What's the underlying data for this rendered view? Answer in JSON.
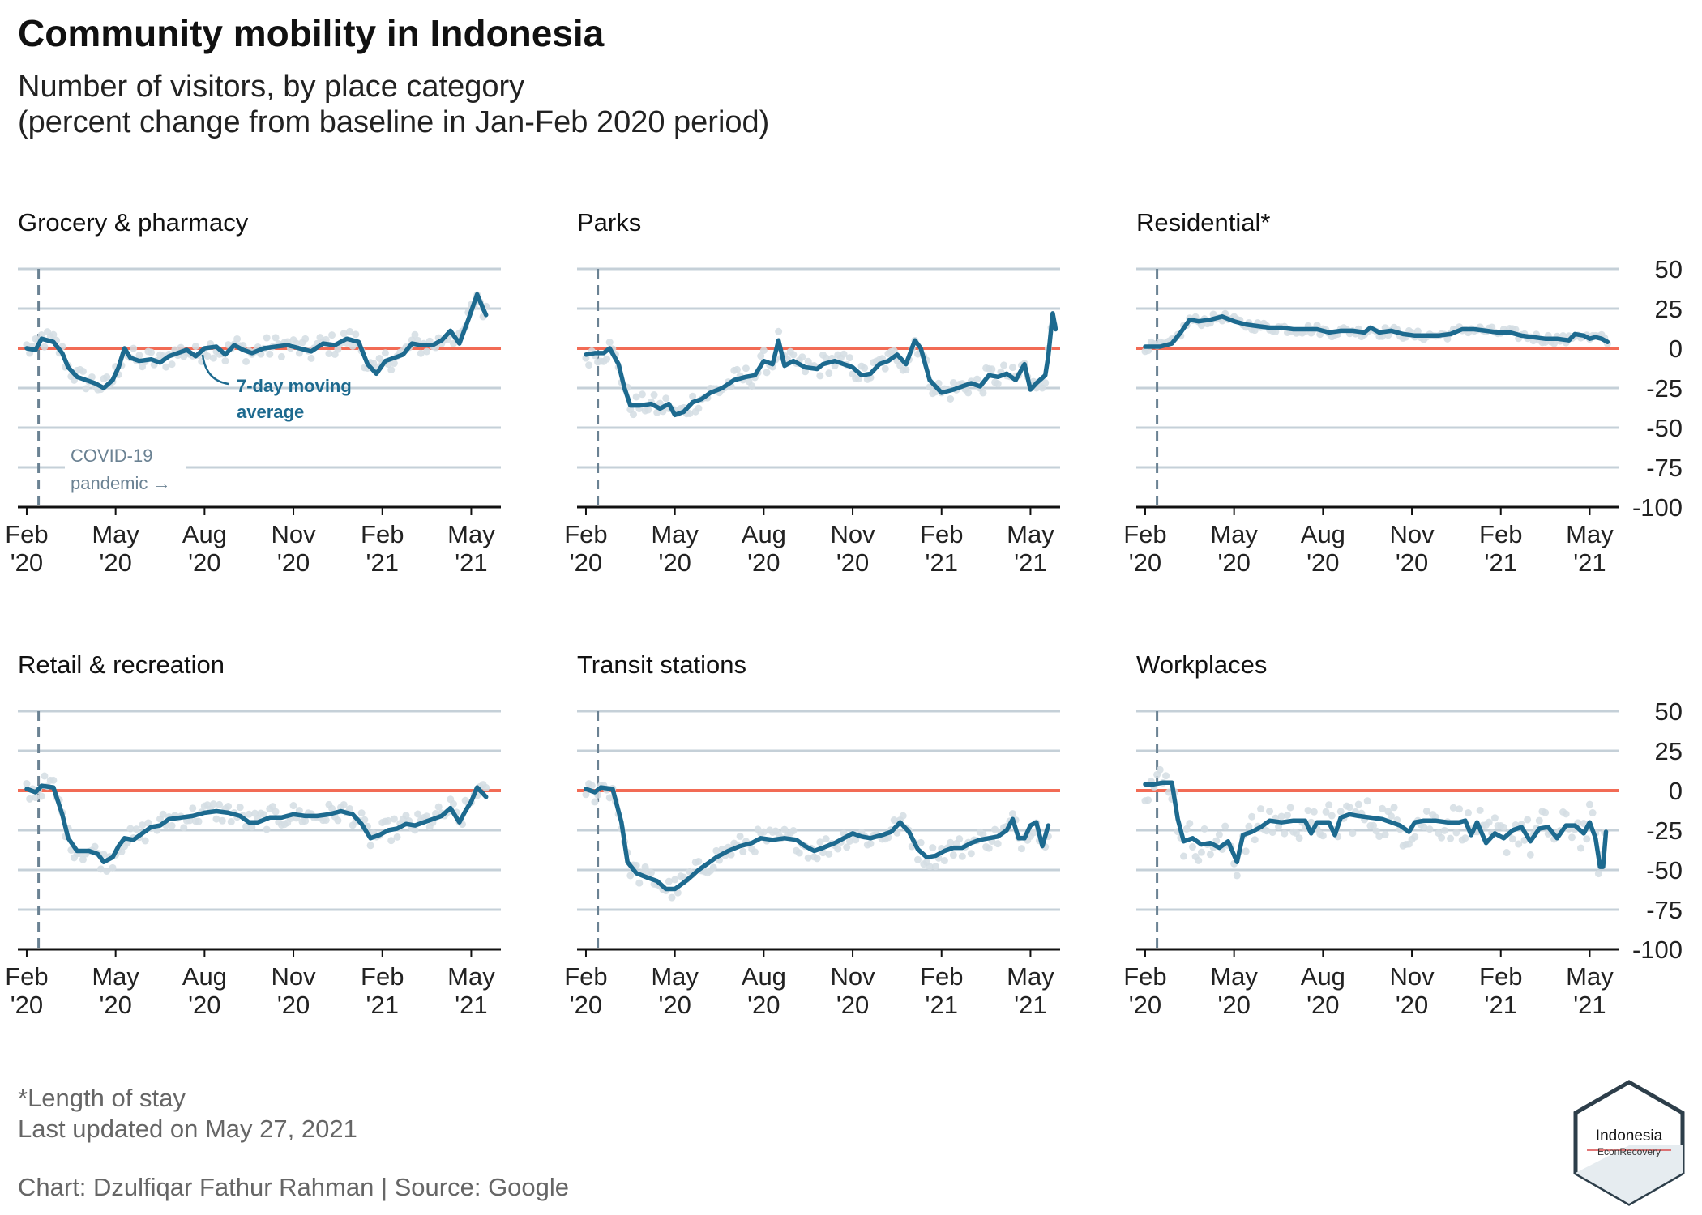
{
  "title": "Community mobility in Indonesia",
  "subtitle_line1": "Number of visitors, by place category",
  "subtitle_line2": "(percent change from baseline in Jan-Feb 2020 period)",
  "footnote_line1": "*Length of stay",
  "footnote_line2": "Last updated on May 27, 2021",
  "credit": "Chart: Dzulfiqar Fathur Rahman | Source: Google",
  "logo": {
    "line1": "Indonesia",
    "line2": "EconRecovery"
  },
  "annotations": {
    "covid_line1": "COVID-19",
    "covid_line2": "pandemic →",
    "ma_line1": "7-day moving",
    "ma_line2": "average"
  },
  "colors": {
    "line": "#1d6a8f",
    "baseline": "#f26b55",
    "grid": "#c5d0d8",
    "points": "#d4dde3",
    "covid": "#6b8293",
    "annotation": "#1d6a8f"
  },
  "chart_data": {
    "type": "line",
    "x_tick_labels": [
      [
        "Feb",
        "'20"
      ],
      [
        "May",
        "'20"
      ],
      [
        "Aug",
        "'20"
      ],
      [
        "Nov",
        "'20"
      ],
      [
        "Feb",
        "'21"
      ],
      [
        "May",
        "'21"
      ]
    ],
    "x_tick_months": [
      0,
      3,
      6,
      9,
      12,
      15
    ],
    "ylim": [
      -100,
      50
    ],
    "y_ticks": [
      50,
      25,
      0,
      -25,
      -50,
      -75,
      -100
    ],
    "covid_marker_month": 0.4,
    "panels": [
      {
        "name": "Grocery & pharmacy",
        "points": [
          [
            0,
            0
          ],
          [
            0.3,
            -1
          ],
          [
            0.5,
            6
          ],
          [
            0.9,
            4
          ],
          [
            1.2,
            -3
          ],
          [
            1.4,
            -12
          ],
          [
            1.7,
            -18
          ],
          [
            2.0,
            -20
          ],
          [
            2.3,
            -22
          ],
          [
            2.6,
            -25
          ],
          [
            2.9,
            -20
          ],
          [
            3.1,
            -12
          ],
          [
            3.3,
            0
          ],
          [
            3.5,
            -6
          ],
          [
            3.8,
            -8
          ],
          [
            4.2,
            -7
          ],
          [
            4.5,
            -9
          ],
          [
            4.8,
            -5
          ],
          [
            5.1,
            -3
          ],
          [
            5.4,
            -1
          ],
          [
            5.7,
            -5
          ],
          [
            6.0,
            0
          ],
          [
            6.4,
            1
          ],
          [
            6.7,
            -4
          ],
          [
            7.0,
            2
          ],
          [
            7.3,
            -1
          ],
          [
            7.6,
            -3
          ],
          [
            8.0,
            0
          ],
          [
            8.4,
            1
          ],
          [
            8.8,
            2
          ],
          [
            9.2,
            0
          ],
          [
            9.6,
            -2
          ],
          [
            10.0,
            3
          ],
          [
            10.4,
            2
          ],
          [
            10.8,
            6
          ],
          [
            11.2,
            4
          ],
          [
            11.5,
            -10
          ],
          [
            11.8,
            -16
          ],
          [
            12.1,
            -8
          ],
          [
            12.4,
            -6
          ],
          [
            12.7,
            -4
          ],
          [
            13.0,
            3
          ],
          [
            13.3,
            2
          ],
          [
            13.7,
            2
          ],
          [
            14.0,
            5
          ],
          [
            14.3,
            11
          ],
          [
            14.6,
            3
          ],
          [
            14.9,
            18
          ],
          [
            15.2,
            34
          ],
          [
            15.4,
            25
          ],
          [
            15.5,
            21
          ]
        ]
      },
      {
        "name": "Parks",
        "points": [
          [
            0,
            -4
          ],
          [
            0.3,
            -3
          ],
          [
            0.6,
            -3
          ],
          [
            0.8,
            0
          ],
          [
            1.1,
            -10
          ],
          [
            1.3,
            -25
          ],
          [
            1.5,
            -36
          ],
          [
            1.8,
            -36
          ],
          [
            2.2,
            -35
          ],
          [
            2.5,
            -38
          ],
          [
            2.8,
            -35
          ],
          [
            3.0,
            -42
          ],
          [
            3.3,
            -40
          ],
          [
            3.6,
            -34
          ],
          [
            3.9,
            -32
          ],
          [
            4.2,
            -28
          ],
          [
            4.6,
            -25
          ],
          [
            5.0,
            -20
          ],
          [
            5.4,
            -18
          ],
          [
            5.7,
            -17
          ],
          [
            6.0,
            -8
          ],
          [
            6.3,
            -10
          ],
          [
            6.5,
            5
          ],
          [
            6.7,
            -11
          ],
          [
            7.0,
            -8
          ],
          [
            7.4,
            -12
          ],
          [
            7.8,
            -13
          ],
          [
            8.0,
            -10
          ],
          [
            8.4,
            -8
          ],
          [
            8.7,
            -10
          ],
          [
            9.0,
            -12
          ],
          [
            9.3,
            -17
          ],
          [
            9.6,
            -16
          ],
          [
            9.9,
            -10
          ],
          [
            10.2,
            -8
          ],
          [
            10.5,
            -4
          ],
          [
            10.8,
            -10
          ],
          [
            11.1,
            5
          ],
          [
            11.3,
            0
          ],
          [
            11.6,
            -20
          ],
          [
            12.0,
            -28
          ],
          [
            12.4,
            -26
          ],
          [
            12.7,
            -24
          ],
          [
            13.0,
            -22
          ],
          [
            13.3,
            -24
          ],
          [
            13.6,
            -17
          ],
          [
            13.9,
            -18
          ],
          [
            14.2,
            -16
          ],
          [
            14.5,
            -20
          ],
          [
            14.8,
            -10
          ],
          [
            15.0,
            -26
          ],
          [
            15.2,
            -22
          ],
          [
            15.5,
            -17
          ],
          [
            15.6,
            -5
          ],
          [
            15.75,
            22
          ],
          [
            15.85,
            12
          ]
        ]
      },
      {
        "name": "Residential*",
        "points": [
          [
            0,
            1
          ],
          [
            0.5,
            1
          ],
          [
            0.9,
            3
          ],
          [
            1.2,
            10
          ],
          [
            1.5,
            18
          ],
          [
            1.8,
            17
          ],
          [
            2.2,
            18
          ],
          [
            2.6,
            20
          ],
          [
            3.0,
            17
          ],
          [
            3.4,
            15
          ],
          [
            3.8,
            14
          ],
          [
            4.2,
            13
          ],
          [
            4.6,
            13
          ],
          [
            5.0,
            12
          ],
          [
            5.4,
            12
          ],
          [
            5.8,
            12
          ],
          [
            6.2,
            10
          ],
          [
            6.6,
            11
          ],
          [
            7.0,
            11
          ],
          [
            7.4,
            10
          ],
          [
            7.6,
            13
          ],
          [
            7.9,
            10
          ],
          [
            8.3,
            11
          ],
          [
            8.7,
            9
          ],
          [
            9.1,
            8
          ],
          [
            9.5,
            8
          ],
          [
            9.9,
            8
          ],
          [
            10.3,
            9
          ],
          [
            10.7,
            12
          ],
          [
            11.1,
            12
          ],
          [
            11.5,
            11
          ],
          [
            11.9,
            10
          ],
          [
            12.3,
            10
          ],
          [
            12.7,
            8
          ],
          [
            13.1,
            7
          ],
          [
            13.5,
            6
          ],
          [
            13.9,
            6
          ],
          [
            14.3,
            5
          ],
          [
            14.5,
            9
          ],
          [
            14.8,
            8
          ],
          [
            15.0,
            6
          ],
          [
            15.2,
            7
          ],
          [
            15.4,
            6
          ],
          [
            15.6,
            4
          ]
        ]
      },
      {
        "name": "Retail & recreation",
        "points": [
          [
            0,
            1
          ],
          [
            0.3,
            -1
          ],
          [
            0.5,
            3
          ],
          [
            0.9,
            2
          ],
          [
            1.2,
            -15
          ],
          [
            1.4,
            -30
          ],
          [
            1.7,
            -38
          ],
          [
            2.1,
            -38
          ],
          [
            2.4,
            -40
          ],
          [
            2.6,
            -45
          ],
          [
            2.9,
            -42
          ],
          [
            3.1,
            -35
          ],
          [
            3.3,
            -30
          ],
          [
            3.6,
            -31
          ],
          [
            3.9,
            -27
          ],
          [
            4.2,
            -23
          ],
          [
            4.5,
            -22
          ],
          [
            4.8,
            -18
          ],
          [
            5.2,
            -17
          ],
          [
            5.6,
            -16
          ],
          [
            6.0,
            -14
          ],
          [
            6.4,
            -13
          ],
          [
            6.8,
            -14
          ],
          [
            7.2,
            -16
          ],
          [
            7.5,
            -20
          ],
          [
            7.8,
            -20
          ],
          [
            8.2,
            -17
          ],
          [
            8.6,
            -17
          ],
          [
            9.0,
            -15
          ],
          [
            9.4,
            -16
          ],
          [
            9.8,
            -16
          ],
          [
            10.2,
            -15
          ],
          [
            10.6,
            -13
          ],
          [
            11.0,
            -15
          ],
          [
            11.3,
            -21
          ],
          [
            11.6,
            -30
          ],
          [
            11.9,
            -28
          ],
          [
            12.2,
            -25
          ],
          [
            12.5,
            -24
          ],
          [
            12.8,
            -21
          ],
          [
            13.1,
            -22
          ],
          [
            13.4,
            -20
          ],
          [
            13.7,
            -18
          ],
          [
            14.0,
            -16
          ],
          [
            14.3,
            -11
          ],
          [
            14.6,
            -20
          ],
          [
            14.8,
            -13
          ],
          [
            15.0,
            -7
          ],
          [
            15.2,
            2
          ],
          [
            15.4,
            -2
          ],
          [
            15.5,
            -4
          ]
        ]
      },
      {
        "name": "Transit stations",
        "points": [
          [
            0,
            1
          ],
          [
            0.3,
            -1
          ],
          [
            0.5,
            2
          ],
          [
            0.9,
            1
          ],
          [
            1.2,
            -20
          ],
          [
            1.4,
            -45
          ],
          [
            1.7,
            -52
          ],
          [
            2.1,
            -55
          ],
          [
            2.4,
            -57
          ],
          [
            2.7,
            -62
          ],
          [
            3.0,
            -62
          ],
          [
            3.3,
            -58
          ],
          [
            3.5,
            -55
          ],
          [
            3.8,
            -50
          ],
          [
            4.1,
            -46
          ],
          [
            4.4,
            -42
          ],
          [
            4.8,
            -38
          ],
          [
            5.2,
            -35
          ],
          [
            5.6,
            -33
          ],
          [
            5.9,
            -30
          ],
          [
            6.3,
            -31
          ],
          [
            6.7,
            -30
          ],
          [
            7.1,
            -31
          ],
          [
            7.4,
            -35
          ],
          [
            7.7,
            -38
          ],
          [
            8.0,
            -36
          ],
          [
            8.4,
            -33
          ],
          [
            8.7,
            -30
          ],
          [
            9.0,
            -27
          ],
          [
            9.3,
            -29
          ],
          [
            9.6,
            -30
          ],
          [
            10.0,
            -28
          ],
          [
            10.3,
            -26
          ],
          [
            10.6,
            -20
          ],
          [
            10.9,
            -26
          ],
          [
            11.2,
            -37
          ],
          [
            11.5,
            -42
          ],
          [
            11.8,
            -41
          ],
          [
            12.1,
            -38
          ],
          [
            12.4,
            -36
          ],
          [
            12.7,
            -36
          ],
          [
            13.0,
            -33
          ],
          [
            13.3,
            -31
          ],
          [
            13.6,
            -30
          ],
          [
            13.9,
            -29
          ],
          [
            14.2,
            -25
          ],
          [
            14.4,
            -18
          ],
          [
            14.6,
            -30
          ],
          [
            14.8,
            -30
          ],
          [
            15.0,
            -22
          ],
          [
            15.2,
            -20
          ],
          [
            15.4,
            -35
          ],
          [
            15.6,
            -22
          ]
        ]
      },
      {
        "name": "Workplaces",
        "points": [
          [
            0,
            4
          ],
          [
            0.3,
            4
          ],
          [
            0.6,
            5
          ],
          [
            0.9,
            5
          ],
          [
            1.1,
            -18
          ],
          [
            1.3,
            -32
          ],
          [
            1.6,
            -30
          ],
          [
            1.9,
            -34
          ],
          [
            2.2,
            -33
          ],
          [
            2.5,
            -36
          ],
          [
            2.8,
            -32
          ],
          [
            3.1,
            -45
          ],
          [
            3.3,
            -28
          ],
          [
            3.6,
            -26
          ],
          [
            3.9,
            -23
          ],
          [
            4.2,
            -19
          ],
          [
            4.6,
            -20
          ],
          [
            5.0,
            -19
          ],
          [
            5.4,
            -19
          ],
          [
            5.6,
            -27
          ],
          [
            5.8,
            -20
          ],
          [
            6.2,
            -20
          ],
          [
            6.4,
            -28
          ],
          [
            6.6,
            -17
          ],
          [
            6.9,
            -15
          ],
          [
            7.2,
            -16
          ],
          [
            7.6,
            -17
          ],
          [
            8.0,
            -18
          ],
          [
            8.3,
            -20
          ],
          [
            8.6,
            -22
          ],
          [
            8.9,
            -26
          ],
          [
            9.1,
            -20
          ],
          [
            9.4,
            -19
          ],
          [
            9.8,
            -19
          ],
          [
            10.2,
            -20
          ],
          [
            10.6,
            -20
          ],
          [
            10.8,
            -19
          ],
          [
            11.0,
            -28
          ],
          [
            11.2,
            -20
          ],
          [
            11.5,
            -33
          ],
          [
            11.8,
            -27
          ],
          [
            12.1,
            -30
          ],
          [
            12.4,
            -25
          ],
          [
            12.7,
            -23
          ],
          [
            13.0,
            -32
          ],
          [
            13.3,
            -24
          ],
          [
            13.6,
            -23
          ],
          [
            13.9,
            -30
          ],
          [
            14.2,
            -22
          ],
          [
            14.5,
            -22
          ],
          [
            14.8,
            -27
          ],
          [
            15.0,
            -20
          ],
          [
            15.2,
            -30
          ],
          [
            15.35,
            -48
          ],
          [
            15.45,
            -48
          ],
          [
            15.55,
            -26
          ]
        ]
      }
    ]
  }
}
